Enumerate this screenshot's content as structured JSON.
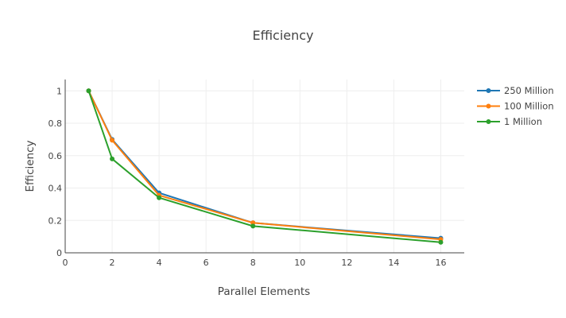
{
  "chart_data": {
    "type": "line",
    "title": "Efficiency",
    "xlabel": "Parallel Elements",
    "ylabel": "Efficiency",
    "xlim": [
      0,
      17
    ],
    "ylim": [
      0,
      1.07
    ],
    "xticks": [
      0,
      2,
      4,
      6,
      8,
      10,
      12,
      14,
      16
    ],
    "yticks": [
      0,
      0.2,
      0.4,
      0.6,
      0.8,
      1
    ],
    "ytick_labels": [
      "0",
      "0.2",
      "0.4",
      "0.6",
      "0.8",
      "1"
    ],
    "grid": true,
    "legend": "top-right",
    "x": [
      1,
      2,
      4,
      8,
      16
    ],
    "series": [
      {
        "name": "250 Million",
        "color": "#1f77b4",
        "values": [
          1,
          0.7,
          0.37,
          0.185,
          0.09
        ]
      },
      {
        "name": "100 Million",
        "color": "#ff7f0e",
        "values": [
          1,
          0.695,
          0.355,
          0.185,
          0.083
        ]
      },
      {
        "name": "1 Million",
        "color": "#2ca02c",
        "values": [
          1,
          0.58,
          0.34,
          0.165,
          0.065
        ]
      }
    ]
  }
}
